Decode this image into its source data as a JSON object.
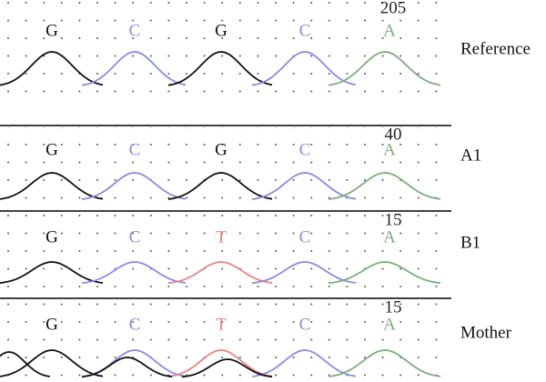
{
  "base_colors": {
    "G": "#111111",
    "C": "#8a8ae6",
    "T": "#ea8282",
    "A": "#7aae7a"
  },
  "panels": [
    {
      "position": "205",
      "bases": [
        "G",
        "C",
        "G",
        "C",
        "A"
      ],
      "label": "Reference"
    },
    {
      "position": "40",
      "bases": [
        "G",
        "C",
        "G",
        "C",
        "A"
      ],
      "label": "A1"
    },
    {
      "position": "15",
      "bases": [
        "G",
        "C",
        "T",
        "C",
        "A"
      ],
      "label": "B1"
    },
    {
      "position": "15",
      "bases": [
        "G",
        "C",
        "T",
        "C",
        "A"
      ],
      "label": "Mother"
    }
  ]
}
